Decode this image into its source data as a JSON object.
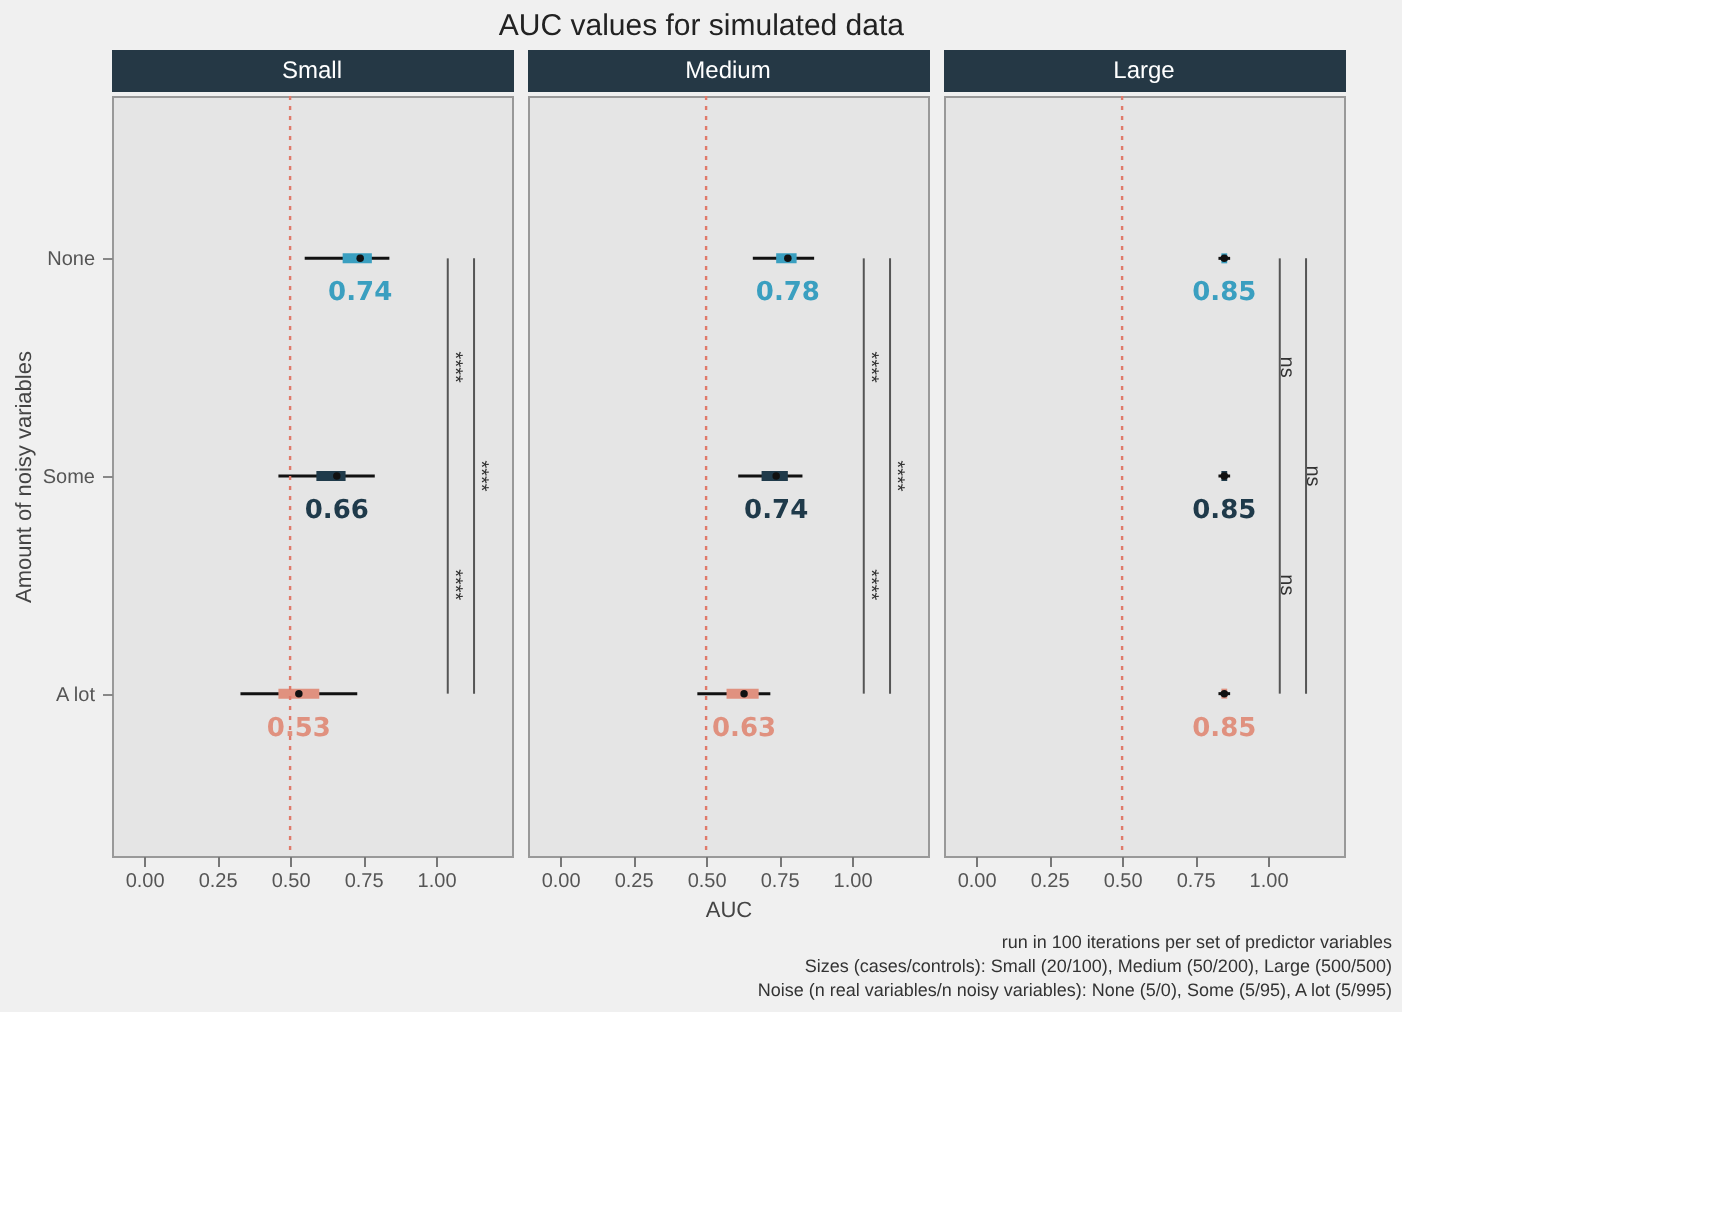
{
  "chart_data": [
    {
      "type": "other",
      "title": "AUC values for simulated data"
    },
    {
      "type": "box",
      "orientation": "horizontal",
      "subtitle": "Small",
      "ylabel": "Amount of noisy variables",
      "categories": [
        "None",
        "Some",
        "A lot"
      ],
      "colors": [
        "#3a9fc0",
        "#1f3a4a",
        "#e0917f"
      ],
      "boxes": [
        {
          "low": 0.55,
          "q1": 0.68,
          "median": 0.74,
          "q3": 0.78,
          "high": 0.84
        },
        {
          "low": 0.46,
          "q1": 0.59,
          "median": 0.66,
          "q3": 0.69,
          "high": 0.79
        },
        {
          "low": 0.33,
          "q1": 0.46,
          "median": 0.53,
          "q3": 0.6,
          "high": 0.73
        }
      ],
      "xlim": [
        -0.11,
        1.26
      ],
      "xticks": [
        {
          "value": 0,
          "label": "0.00"
        },
        {
          "value": 0.25,
          "label": "0.25"
        },
        {
          "value": 0.5,
          "label": "0.50"
        },
        {
          "value": 0.75,
          "label": "0.75"
        },
        {
          "value": 1,
          "label": "1.00"
        }
      ],
      "ref_lines": [
        {
          "axis": "x",
          "value": 0.5,
          "line_style": "dotted",
          "color": "#e07a6a"
        }
      ],
      "annotations": [
        {
          "text": "0.74",
          "x": 0.74,
          "y": "None"
        },
        {
          "text": "0.66",
          "x": 0.66,
          "y": "Some"
        },
        {
          "text": "0.53",
          "x": 0.53,
          "y": "A lot"
        },
        "****",
        "****",
        "****"
      ]
    },
    {
      "type": "box",
      "orientation": "horizontal",
      "subtitle": "Medium",
      "xlabel": "AUC",
      "categories": [
        "None",
        "Some",
        "A lot"
      ],
      "colors": [
        "#3a9fc0",
        "#1f3a4a",
        "#e0917f"
      ],
      "boxes": [
        {
          "low": 0.66,
          "q1": 0.74,
          "median": 0.78,
          "q3": 0.81,
          "high": 0.87
        },
        {
          "low": 0.61,
          "q1": 0.69,
          "median": 0.74,
          "q3": 0.78,
          "high": 0.83
        },
        {
          "low": 0.47,
          "q1": 0.57,
          "median": 0.63,
          "q3": 0.68,
          "high": 0.72
        }
      ],
      "tick_labels": "x",
      "xlim": [
        -0.11,
        1.26
      ],
      "xticks": [
        {
          "value": 0,
          "label": "0.00"
        },
        {
          "value": 0.25,
          "label": "0.25"
        },
        {
          "value": 0.5,
          "label": "0.50"
        },
        {
          "value": 0.75,
          "label": "0.75"
        },
        {
          "value": 1,
          "label": "1.00"
        }
      ],
      "ref_lines": [
        {
          "axis": "x",
          "value": 0.5,
          "line_style": "dotted",
          "color": "#e07a6a"
        }
      ],
      "annotations": [
        {
          "text": "0.78",
          "x": 0.78,
          "y": "None"
        },
        {
          "text": "0.74",
          "x": 0.74,
          "y": "Some"
        },
        {
          "text": "0.63",
          "x": 0.63,
          "y": "A lot"
        },
        "****",
        "****",
        "****"
      ]
    },
    {
      "type": "box",
      "orientation": "horizontal",
      "subtitle": "Large",
      "categories": [
        "None",
        "Some",
        "A lot"
      ],
      "colors": [
        "#3a9fc0",
        "#1f3a4a",
        "#e0917f"
      ],
      "boxes": [
        {
          "low": 0.83,
          "q1": 0.84,
          "median": 0.85,
          "q3": 0.86,
          "high": 0.87
        },
        {
          "low": 0.83,
          "q1": 0.84,
          "median": 0.85,
          "q3": 0.86,
          "high": 0.87
        },
        {
          "low": 0.83,
          "q1": 0.84,
          "median": 0.85,
          "q3": 0.86,
          "high": 0.87
        }
      ],
      "tick_labels": "x",
      "xlim": [
        -0.11,
        1.26
      ],
      "xticks": [
        {
          "value": 0,
          "label": "0.00"
        },
        {
          "value": 0.25,
          "label": "0.25"
        },
        {
          "value": 0.5,
          "label": "0.50"
        },
        {
          "value": 0.75,
          "label": "0.75"
        },
        {
          "value": 1,
          "label": "1.00"
        }
      ],
      "ref_lines": [
        {
          "axis": "x",
          "value": 0.5,
          "line_style": "dotted",
          "color": "#e07a6a"
        }
      ],
      "annotations": [
        {
          "text": "0.85",
          "x": 0.85,
          "y": "None"
        },
        {
          "text": "0.85",
          "x": 0.85,
          "y": "Some"
        },
        {
          "text": "0.85",
          "x": 0.85,
          "y": "A lot"
        },
        "ns",
        "ns",
        "ns"
      ]
    },
    {
      "type": "other",
      "annotations": [
        "run in 100 iterations per set of predictor variables",
        "Sizes (cases/controls): Small (20/100), Medium (50/200), Large (500/500)",
        "Noise (n real variables/n noisy variables): None (5/0), Some (5/95), A lot (5/995)"
      ]
    }
  ]
}
